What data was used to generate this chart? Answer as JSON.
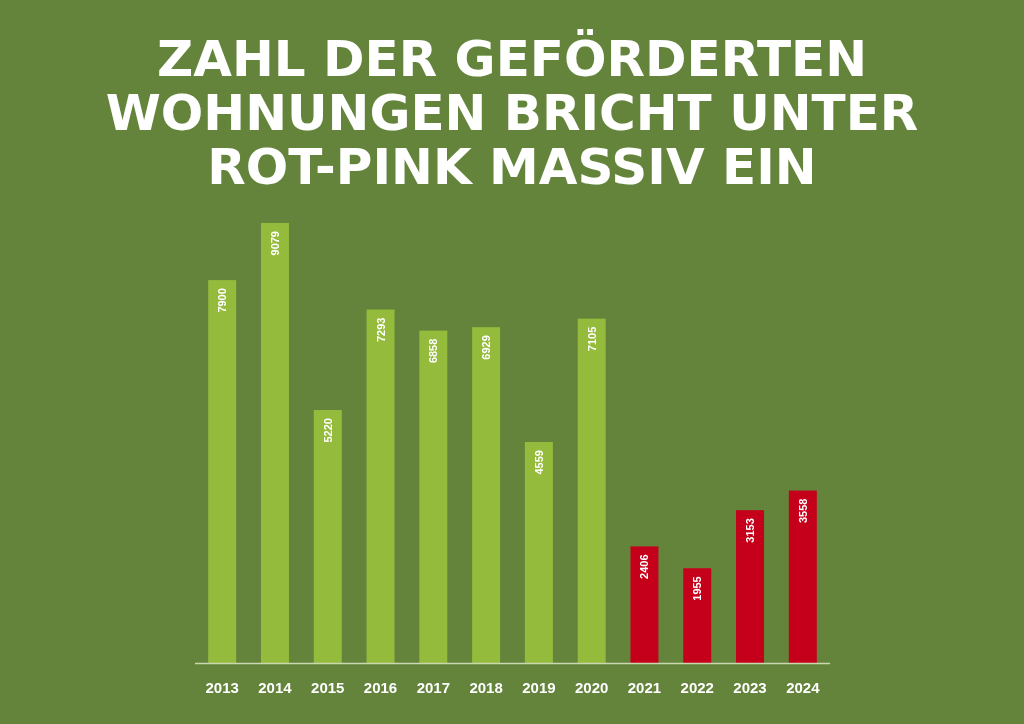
{
  "chart_data": {
    "type": "bar",
    "title": "ZAHL DER GEFÖRDERTEN WOHNUNGEN BRICHT UNTER ROT-PINK MASSIV EIN",
    "categories": [
      "2013",
      "2014",
      "2015",
      "2016",
      "2017",
      "2018",
      "2019",
      "2020",
      "2021",
      "2022",
      "2023",
      "2024"
    ],
    "values": [
      7900,
      9079,
      5220,
      7293,
      6858,
      6929,
      4559,
      7105,
      2406,
      1955,
      3153,
      3558
    ],
    "colors": [
      "#95bb3d",
      "#95bb3d",
      "#95bb3d",
      "#95bb3d",
      "#95bb3d",
      "#95bb3d",
      "#95bb3d",
      "#95bb3d",
      "#c4001a",
      "#c4001a",
      "#c4001a",
      "#c4001a"
    ],
    "data_labels": true
  }
}
